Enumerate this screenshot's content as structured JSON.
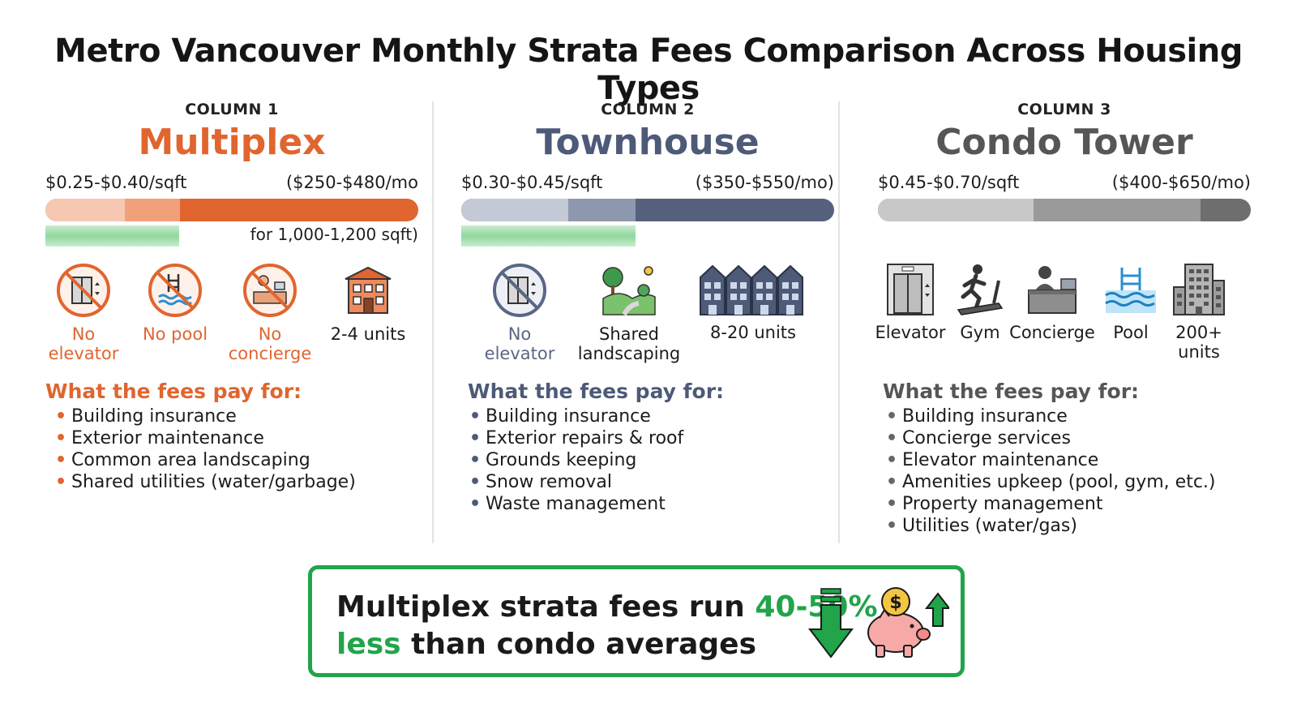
{
  "title": "Metro Vancouver Monthly Strata Fees Comparison Across Housing Types",
  "colors": {
    "multiplex": "#e0652f",
    "townhouse": "#4d5a78",
    "condo": "#565656",
    "green": "#21a44a"
  },
  "columns": [
    {
      "label": "COLUMN 1",
      "name": "Multiplex",
      "rate": "$0.25-$0.40/sqft",
      "monthly": "($250-$480/mo",
      "sqft_note": "for 1,000-1,200 sqft)",
      "icons": [
        {
          "icon": "no-elevator-icon",
          "line1": "No",
          "line2": "elevator"
        },
        {
          "icon": "no-pool-icon",
          "line1": "No pool",
          "line2": ""
        },
        {
          "icon": "no-concierge-icon",
          "line1": "No",
          "line2": "concierge"
        },
        {
          "icon": "small-building-icon",
          "line1": "2-4 units",
          "line2": ""
        }
      ],
      "fees_heading": "What the fees pay for:",
      "fees": [
        "Building insurance",
        "Exterior maintenance",
        "Common area landscaping",
        "Shared utilities (water/garbage)"
      ]
    },
    {
      "label": "COLUMN 2",
      "name": "Townhouse",
      "rate": "$0.30-$0.45/sqft",
      "monthly": "($350-$550/mo)",
      "icons": [
        {
          "icon": "no-elevator-icon",
          "line1": "No",
          "line2": "elevator"
        },
        {
          "icon": "landscape-icon",
          "line1": "Shared",
          "line2": "landscaping"
        },
        {
          "icon": "townhouse-row-icon",
          "line1": "8-20 units",
          "line2": ""
        }
      ],
      "fees_heading": "What the fees pay for:",
      "fees": [
        "Building insurance",
        "Exterior repairs & roof",
        "Grounds keeping",
        "Snow removal",
        "Waste management"
      ]
    },
    {
      "label": "COLUMN 3",
      "name": "Condo Tower",
      "rate": "$0.45-$0.70/sqft",
      "monthly": "($400-$650/mo)",
      "icons": [
        {
          "icon": "elevator-icon",
          "line1": "Elevator",
          "line2": ""
        },
        {
          "icon": "gym-icon",
          "line1": "Gym",
          "line2": ""
        },
        {
          "icon": "concierge-icon",
          "line1": "Concierge",
          "line2": ""
        },
        {
          "icon": "pool-icon",
          "line1": "Pool",
          "line2": ""
        },
        {
          "icon": "tower-icon",
          "line1": "200+",
          "line2": "units"
        }
      ],
      "fees_heading": "What the fees pay for:",
      "fees": [
        "Building insurance",
        "Concierge services",
        "Elevator maintenance",
        "Amenities upkeep (pool, gym, etc.)",
        "Property management",
        "Utilities (water/gas)"
      ]
    }
  ],
  "callout": {
    "part1": "Multiplex strata fees run ",
    "highlight1": "40-50%",
    "highlight2": "less",
    "part2": " than condo averages",
    "down_icon": "down-arrow-icon",
    "piggy_icon": "piggy-bank-icon"
  }
}
